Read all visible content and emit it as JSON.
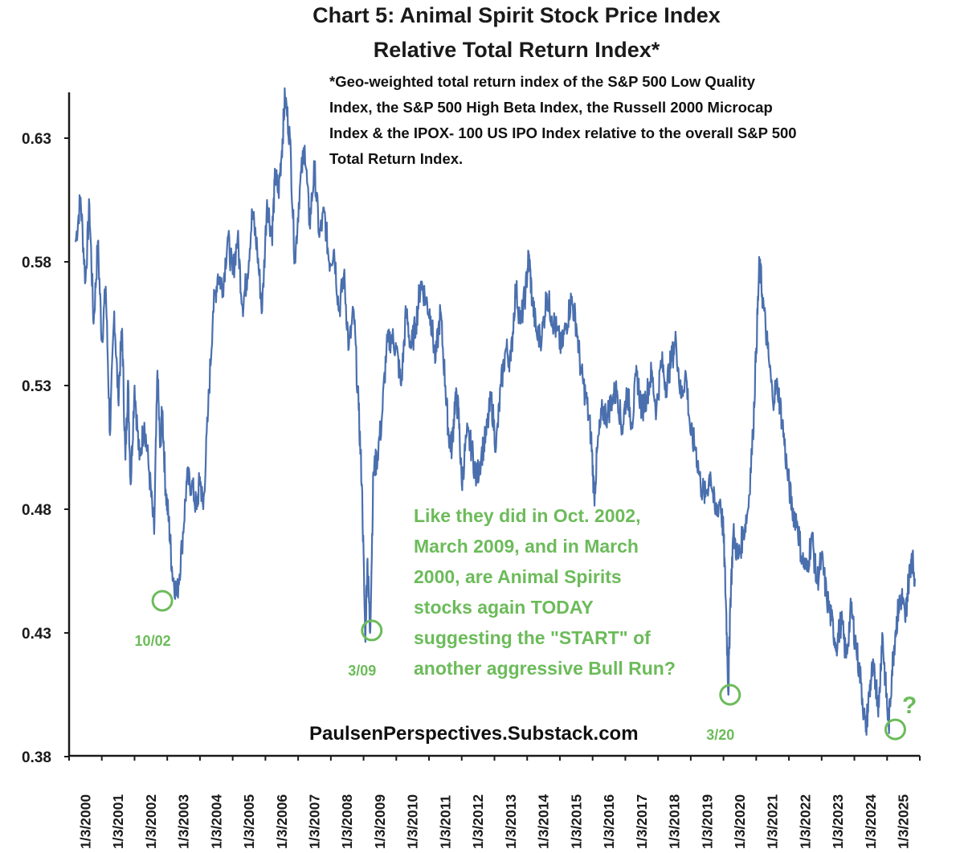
{
  "chart_data": {
    "type": "line",
    "title": "Chart 5: Animal Spirit Stock Price Index",
    "subtitle": "Relative Total Return Index*",
    "footnote": [
      "*Geo-weighted total return index of the S&P 500 Low Quality",
      "Index, the S&P 500 High Beta Index, the Russell 2000 Microcap",
      "Index & the IPOX- 100 US IPO Index relative to the overall S&P 500",
      "Total Return Index."
    ],
    "ylim": [
      0.38,
      0.65
    ],
    "yticks": [
      0.38,
      0.43,
      0.48,
      0.53,
      0.58,
      0.63
    ],
    "ytick_labels": [
      "0.38",
      "0.43",
      "0.48",
      "0.53",
      "0.58",
      "0.63"
    ],
    "xlim": [
      2000.0,
      2026.0
    ],
    "xticks": [
      2000,
      2001,
      2002,
      2003,
      2004,
      2005,
      2006,
      2007,
      2008,
      2009,
      2010,
      2011,
      2012,
      2013,
      2014,
      2015,
      2016,
      2017,
      2018,
      2019,
      2020,
      2021,
      2022,
      2023,
      2024,
      2025
    ],
    "xtick_labels": [
      "1/3/2000",
      "1/3/2001",
      "1/3/2002",
      "1/3/2003",
      "1/3/2004",
      "1/3/2005",
      "1/3/2006",
      "1/3/2007",
      "1/3/2008",
      "1/3/2009",
      "1/3/2010",
      "1/3/2011",
      "1/3/2012",
      "1/3/2013",
      "1/3/2014",
      "1/3/2015",
      "1/3/2016",
      "1/3/2017",
      "1/3/2018",
      "1/3/2019",
      "1/3/2020",
      "1/3/2021",
      "1/3/2022",
      "1/3/2023",
      "1/3/2024",
      "1/3/2025"
    ],
    "line_color": "#4a6fae",
    "highlight_color": "#6cbb5a",
    "series": [
      {
        "x": [
          2000.2,
          2000.35,
          2000.5,
          2000.62,
          2000.75,
          2000.88,
          2001.0,
          2001.12,
          2001.25,
          2001.38,
          2001.5,
          2001.62,
          2001.72,
          2001.8,
          2001.88,
          2002.0,
          2002.15,
          2002.3,
          2002.45,
          2002.6,
          2002.7,
          2002.78,
          2002.85,
          2002.95,
          2003.05,
          2003.15,
          2003.3,
          2003.45,
          2003.6,
          2003.75,
          2003.9,
          2004.0,
          2004.1,
          2004.25,
          2004.4,
          2004.55,
          2004.7,
          2004.85,
          2005.0,
          2005.15,
          2005.3,
          2005.45,
          2005.6,
          2005.75,
          2005.9,
          2006.05,
          2006.2,
          2006.3,
          2006.4,
          2006.5,
          2006.6,
          2006.75,
          2006.9,
          2007.05,
          2007.2,
          2007.35,
          2007.5,
          2007.65,
          2007.8,
          2007.95,
          2008.1,
          2008.25,
          2008.4,
          2008.55,
          2008.7,
          2008.85,
          2008.95,
          2009.05,
          2009.12,
          2009.2,
          2009.3,
          2009.4,
          2009.55,
          2009.7,
          2009.85,
          2010.0,
          2010.15,
          2010.3,
          2010.45,
          2010.6,
          2010.75,
          2010.9,
          2011.05,
          2011.2,
          2011.35,
          2011.5,
          2011.6,
          2011.7,
          2011.8,
          2011.9,
          2012.0,
          2012.15,
          2012.3,
          2012.45,
          2012.6,
          2012.75,
          2012.9,
          2013.05,
          2013.2,
          2013.35,
          2013.5,
          2013.65,
          2013.8,
          2013.95,
          2014.05,
          2014.15,
          2014.3,
          2014.45,
          2014.6,
          2014.75,
          2014.9,
          2015.05,
          2015.2,
          2015.35,
          2015.5,
          2015.65,
          2015.8,
          2015.95,
          2016.05,
          2016.15,
          2016.3,
          2016.45,
          2016.6,
          2016.75,
          2016.9,
          2017.05,
          2017.2,
          2017.35,
          2017.5,
          2017.65,
          2017.8,
          2017.95,
          2018.1,
          2018.25,
          2018.4,
          2018.55,
          2018.7,
          2018.85,
          2019.0,
          2019.15,
          2019.3,
          2019.45,
          2019.6,
          2019.75,
          2019.9,
          2020.0,
          2020.08,
          2020.15,
          2020.2,
          2020.3,
          2020.45,
          2020.6,
          2020.75,
          2020.9,
          2021.0,
          2021.1,
          2021.2,
          2021.35,
          2021.5,
          2021.65,
          2021.8,
          2021.95,
          2022.1,
          2022.25,
          2022.4,
          2022.55,
          2022.7,
          2022.85,
          2023.0,
          2023.15,
          2023.3,
          2023.45,
          2023.6,
          2023.75,
          2023.9,
          2024.05,
          2024.2,
          2024.35,
          2024.45,
          2024.55,
          2024.65,
          2024.75,
          2024.85,
          2024.95,
          2025.05,
          2025.15,
          2025.25,
          2025.35,
          2025.45,
          2025.55,
          2025.65,
          2025.75,
          2025.85
        ],
        "y": [
          0.588,
          0.606,
          0.572,
          0.603,
          0.555,
          0.588,
          0.548,
          0.57,
          0.51,
          0.56,
          0.525,
          0.553,
          0.5,
          0.532,
          0.49,
          0.53,
          0.5,
          0.515,
          0.495,
          0.47,
          0.536,
          0.505,
          0.52,
          0.488,
          0.475,
          0.455,
          0.445,
          0.465,
          0.492,
          0.49,
          0.48,
          0.493,
          0.48,
          0.52,
          0.56,
          0.575,
          0.57,
          0.59,
          0.575,
          0.59,
          0.562,
          0.575,
          0.6,
          0.585,
          0.56,
          0.605,
          0.59,
          0.615,
          0.608,
          0.625,
          0.647,
          0.63,
          0.58,
          0.61,
          0.627,
          0.595,
          0.618,
          0.59,
          0.6,
          0.58,
          0.585,
          0.56,
          0.575,
          0.545,
          0.56,
          0.52,
          0.49,
          0.428,
          0.46,
          0.43,
          0.495,
          0.5,
          0.515,
          0.545,
          0.55,
          0.545,
          0.53,
          0.56,
          0.545,
          0.555,
          0.572,
          0.565,
          0.558,
          0.54,
          0.56,
          0.53,
          0.51,
          0.505,
          0.525,
          0.52,
          0.49,
          0.51,
          0.505,
          0.492,
          0.502,
          0.51,
          0.525,
          0.505,
          0.53,
          0.545,
          0.54,
          0.57,
          0.555,
          0.568,
          0.583,
          0.565,
          0.55,
          0.55,
          0.567,
          0.558,
          0.552,
          0.545,
          0.555,
          0.565,
          0.555,
          0.535,
          0.525,
          0.51,
          0.485,
          0.505,
          0.52,
          0.518,
          0.525,
          0.528,
          0.512,
          0.528,
          0.515,
          0.535,
          0.52,
          0.526,
          0.535,
          0.52,
          0.54,
          0.53,
          0.54,
          0.548,
          0.525,
          0.535,
          0.51,
          0.505,
          0.49,
          0.485,
          0.495,
          0.478,
          0.484,
          0.47,
          0.44,
          0.405,
          0.44,
          0.47,
          0.46,
          0.47,
          0.48,
          0.51,
          0.545,
          0.58,
          0.565,
          0.545,
          0.525,
          0.53,
          0.515,
          0.495,
          0.48,
          0.475,
          0.46,
          0.455,
          0.47,
          0.45,
          0.46,
          0.445,
          0.435,
          0.425,
          0.435,
          0.42,
          0.44,
          0.425,
          0.41,
          0.39,
          0.405,
          0.415,
          0.41,
          0.4,
          0.43,
          0.41,
          0.392,
          0.415,
          0.43,
          0.44,
          0.445,
          0.435,
          0.45,
          0.462,
          0.452
        ]
      }
    ],
    "annotation": [
      "Like they did in Oct. 2002,",
      "March 2009, and in March",
      "2000, are Animal Spirits",
      "stocks again TODAY",
      "suggesting the \"START\" of",
      "another aggressive Bull Run?"
    ],
    "markers": [
      {
        "label": "10/02",
        "x": 2002.85,
        "y": 0.443
      },
      {
        "label": "3/09",
        "x": 2009.25,
        "y": 0.431
      },
      {
        "label": "3/20",
        "x": 2020.2,
        "y": 0.405
      },
      {
        "label": "",
        "x": 2025.25,
        "y": 0.391
      }
    ],
    "question_mark": "?",
    "source": "PaulsenPerspectives.Substack.com"
  }
}
